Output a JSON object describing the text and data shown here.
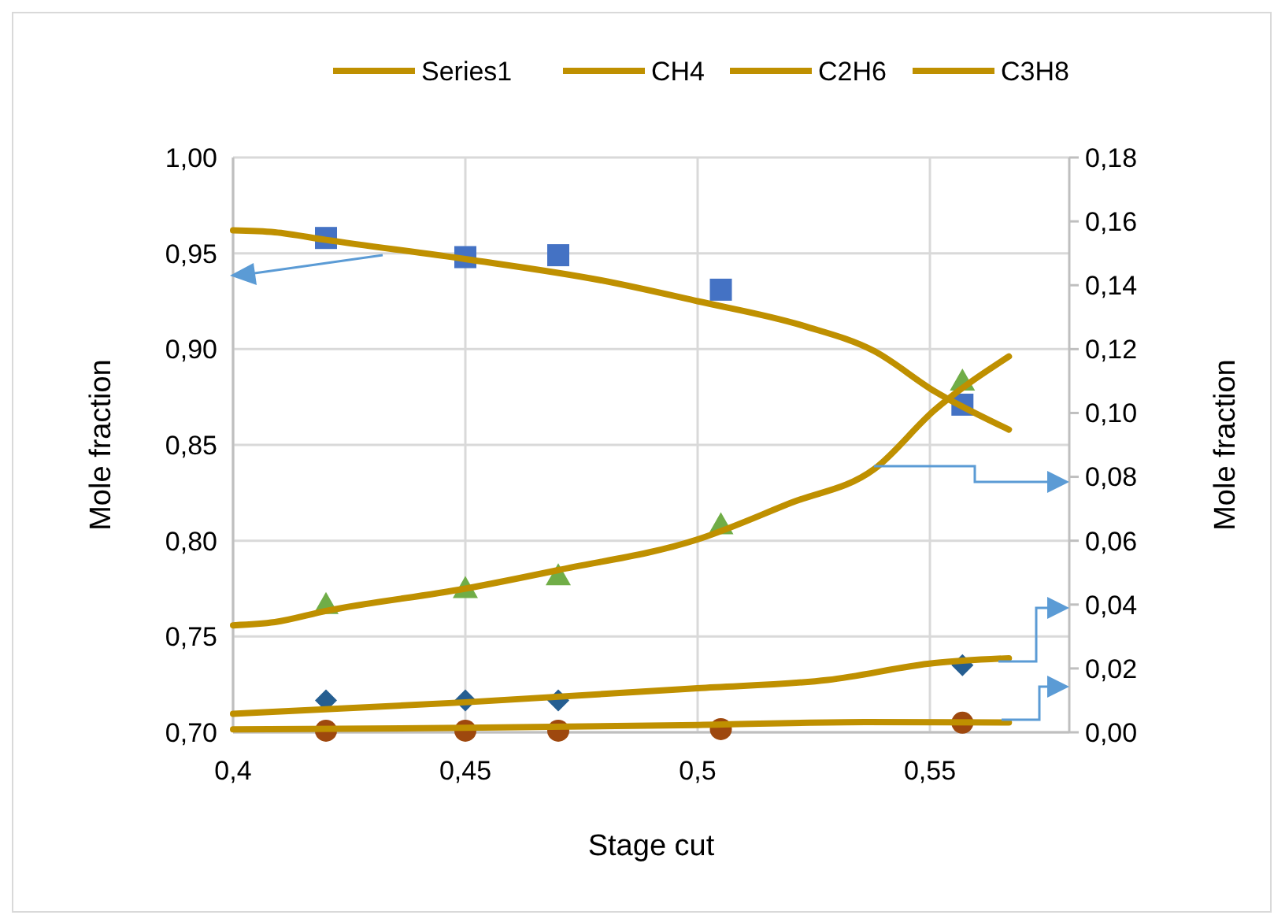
{
  "chart_data": {
    "type": "scatter",
    "xlabel": "Stage cut",
    "ylabel": "Mole fraction",
    "y2label": "Mole fraction",
    "xlim": [
      0.4,
      0.58
    ],
    "xticks": [
      {
        "value": 0.4,
        "label": "0,4"
      },
      {
        "value": 0.45,
        "label": "0,45"
      },
      {
        "value": 0.5,
        "label": "0,5"
      },
      {
        "value": 0.55,
        "label": "0,55"
      }
    ],
    "ylim": [
      0.7,
      1.0
    ],
    "yticks": [
      {
        "value": 0.7,
        "label": "0,70"
      },
      {
        "value": 0.75,
        "label": "0,75"
      },
      {
        "value": 0.8,
        "label": "0,80"
      },
      {
        "value": 0.85,
        "label": "0,85"
      },
      {
        "value": 0.9,
        "label": "0,90"
      },
      {
        "value": 0.95,
        "label": "0,95"
      },
      {
        "value": 1.0,
        "label": "1,00"
      }
    ],
    "y2lim": [
      0,
      0.18
    ],
    "y2ticks": [
      {
        "value": 0,
        "label": "0,00"
      },
      {
        "value": 0.02,
        "label": "0,02"
      },
      {
        "value": 0.04,
        "label": "0,04"
      },
      {
        "value": 0.06,
        "label": "0,06"
      },
      {
        "value": 0.08,
        "label": "0,08"
      },
      {
        "value": 0.1,
        "label": "0,10"
      },
      {
        "value": 0.12,
        "label": "0,12"
      },
      {
        "value": 0.14,
        "label": "0,14"
      },
      {
        "value": 0.16,
        "label": "0,16"
      },
      {
        "value": 0.18,
        "label": "0,18"
      }
    ],
    "grid": true,
    "legend": "top",
    "series": [
      {
        "marker": "square",
        "color": "#4472c4",
        "x": [
          0.42,
          0.45,
          0.47,
          0.505,
          0.557
        ],
        "values": [
          0.958,
          0.948,
          0.949,
          0.931,
          0.871
        ]
      },
      {
        "marker": "triangle",
        "color": "#70ad47",
        "axis": "y2",
        "x": [
          0.42,
          0.45,
          0.47,
          0.505,
          0.557
        ],
        "values": [
          0.04,
          0.045,
          0.049,
          0.065,
          0.11
        ]
      },
      {
        "marker": "diamond",
        "color": "#255e91",
        "axis": "y2",
        "x": [
          0.42,
          0.45,
          0.47,
          0.557
        ],
        "values": [
          0.01,
          0.01,
          0.01,
          0.021
        ]
      },
      {
        "marker": "circle",
        "color": "#9e480e",
        "axis": "y2",
        "x": [
          0.42,
          0.45,
          0.47,
          0.505,
          0.557
        ],
        "values": [
          0.0005,
          0.0005,
          0.0005,
          0.001,
          0.003
        ]
      },
      {
        "type": "line",
        "name": "Series1",
        "marker": "none",
        "color": "#bf9000",
        "x": [
          0.4,
          0.409,
          0.42,
          0.45,
          0.479,
          0.5,
          0.523,
          0.538,
          0.551,
          0.567
        ],
        "values": [
          0.962,
          0.961,
          0.957,
          0.947,
          0.936,
          0.925,
          0.912,
          0.899,
          0.878,
          0.858
        ]
      },
      {
        "type": "line",
        "name": "CH4",
        "marker": "none",
        "color": "#bf9000",
        "axis": "y2",
        "x": [
          0.4,
          0.409,
          0.42,
          0.45,
          0.47,
          0.5,
          0.52,
          0.538,
          0.551,
          0.567
        ],
        "values": [
          0.0335,
          0.0345,
          0.038,
          0.045,
          0.0508,
          0.0604,
          0.0718,
          0.0824,
          0.1009,
          0.1177
        ]
      },
      {
        "type": "line",
        "name": "C2H6",
        "marker": "none",
        "color": "#bf9000",
        "axis": "y2",
        "x": [
          0.4,
          0.45,
          0.5,
          0.528,
          0.551,
          0.567
        ],
        "values": [
          0.0058,
          0.0094,
          0.0138,
          0.0164,
          0.0217,
          0.0232
        ]
      },
      {
        "type": "line",
        "name": "C3H8",
        "marker": "none",
        "color": "#bf9000",
        "axis": "y2",
        "x": [
          0.4,
          0.45,
          0.5,
          0.536,
          0.567
        ],
        "values": [
          0.0009,
          0.0014,
          0.0023,
          0.0032,
          0.0031
        ]
      }
    ]
  }
}
